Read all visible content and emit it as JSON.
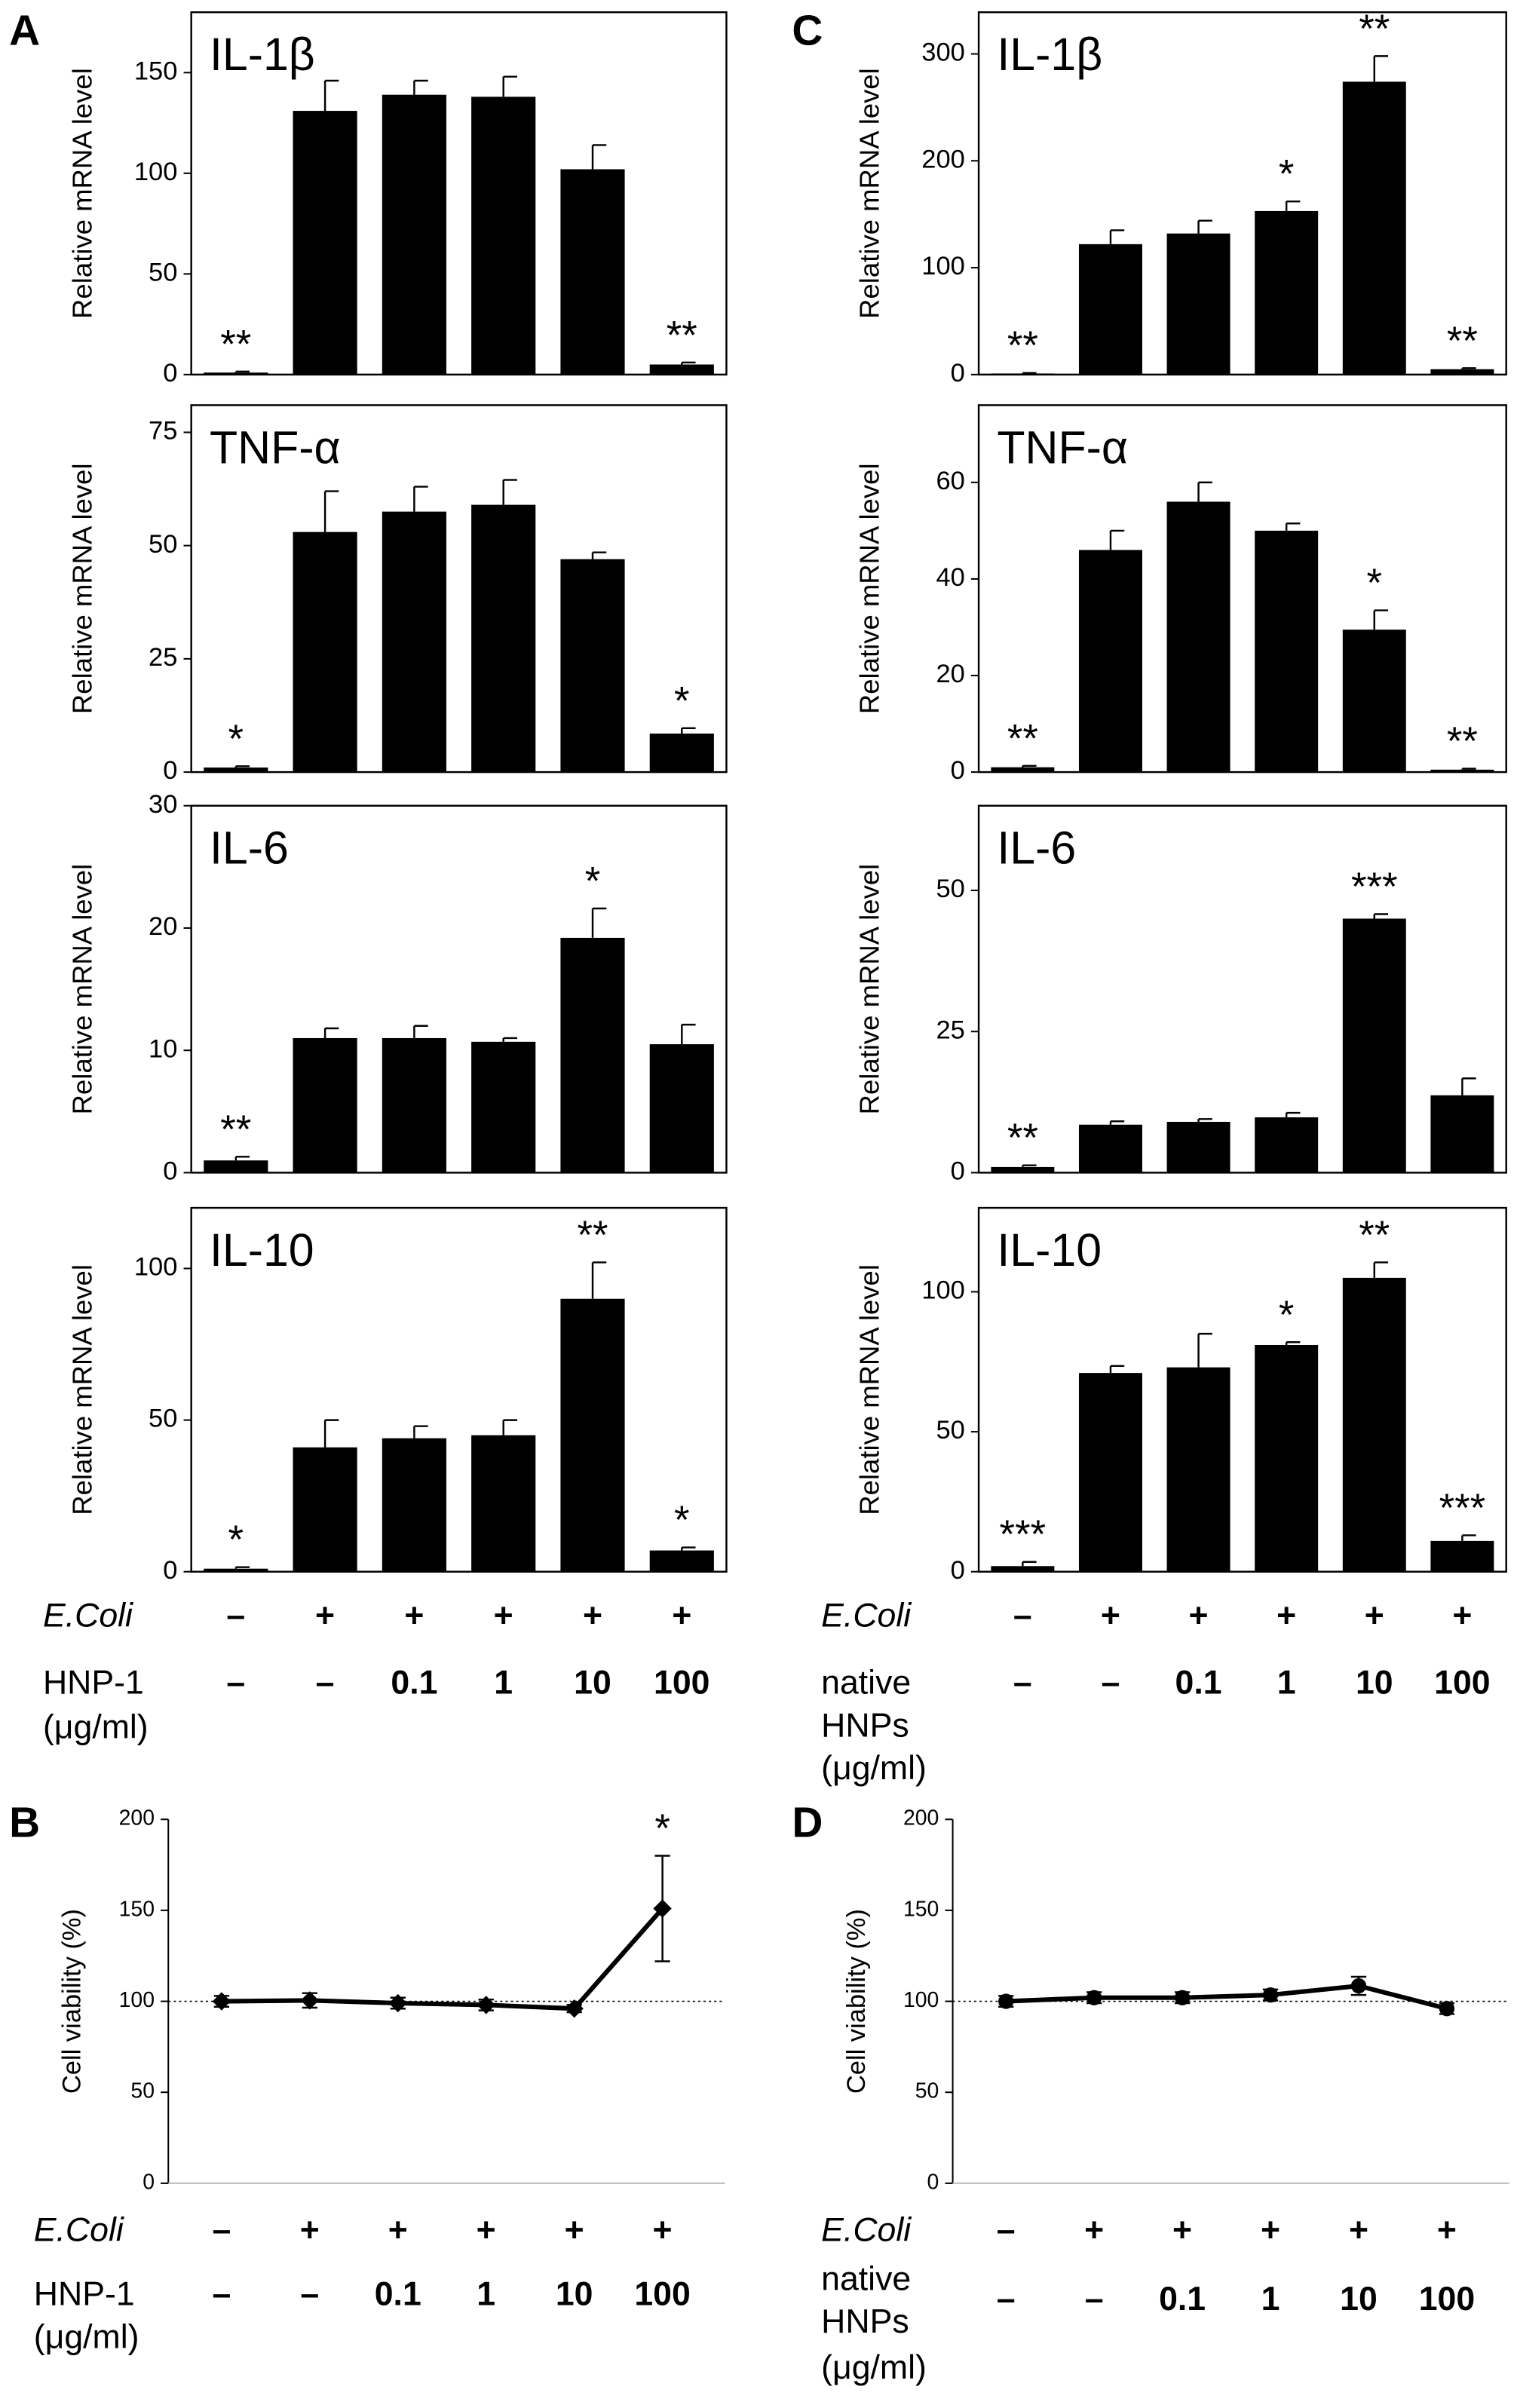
{
  "panels": [
    "A",
    "C",
    "B",
    "D"
  ],
  "chart_data": [
    {
      "type": "bar",
      "title": "IL-1β",
      "y_label": "Relative mRNA level",
      "color": "#000000",
      "ylim": [
        0,
        180
      ],
      "yticks": [
        0,
        50,
        100,
        150
      ],
      "values": [
        1,
        131,
        139,
        138,
        102,
        5
      ],
      "errors": [
        0.5,
        15,
        7,
        10,
        12,
        1
      ],
      "annotations": [
        "**",
        null,
        null,
        null,
        null,
        "**"
      ]
    },
    {
      "type": "bar",
      "title": "TNF-α",
      "y_label": "Relative mRNA level",
      "color": "#000000",
      "ylim": [
        0,
        81
      ],
      "yticks": [
        0,
        25,
        50,
        75
      ],
      "values": [
        1,
        53,
        57.5,
        59,
        47,
        8.5
      ],
      "errors": [
        0.3,
        9,
        5.5,
        5.5,
        1.5,
        1.2
      ],
      "annotations": [
        "*",
        null,
        null,
        null,
        null,
        "*"
      ]
    },
    {
      "type": "bar",
      "title": "IL-6",
      "y_label": "Relative mRNA level",
      "color": "#000000",
      "ylim": [
        0,
        30
      ],
      "yticks": [
        0,
        10,
        20,
        30
      ],
      "values": [
        1,
        11,
        11,
        10.7,
        19.2,
        10.5
      ],
      "errors": [
        0.3,
        0.8,
        1,
        0.3,
        2.4,
        1.6
      ],
      "annotations": [
        "**",
        null,
        null,
        null,
        "*",
        null
      ]
    },
    {
      "type": "bar",
      "title": "IL-10",
      "y_label": "Relative mRNA level",
      "color": "#000000",
      "ylim": [
        0,
        120
      ],
      "yticks": [
        0,
        50,
        100
      ],
      "values": [
        1,
        41,
        44,
        45,
        90,
        7
      ],
      "errors": [
        0.5,
        9,
        4,
        5,
        12,
        1
      ],
      "annotations": [
        "*",
        null,
        null,
        null,
        "**",
        "*"
      ]
    },
    {
      "type": "bar",
      "title": "IL-1β",
      "y_label": "Relative mRNA level",
      "color": "#000000",
      "ylim": [
        0,
        339
      ],
      "yticks": [
        0,
        100,
        200,
        300
      ],
      "values": [
        1,
        122,
        132,
        153,
        274,
        5
      ],
      "errors": [
        0.5,
        13,
        12,
        9,
        24,
        1
      ],
      "annotations": [
        "**",
        null,
        null,
        "*",
        "**",
        "**"
      ]
    },
    {
      "type": "bar",
      "title": "TNF-α",
      "y_label": "Relative mRNA level",
      "color": "#000000",
      "ylim": [
        0,
        76
      ],
      "yticks": [
        0,
        20,
        40,
        60
      ],
      "values": [
        1,
        46,
        56,
        50,
        29.5,
        0.5
      ],
      "errors": [
        0.3,
        4,
        4,
        1.5,
        4,
        0.2
      ],
      "annotations": [
        "**",
        null,
        null,
        null,
        "*",
        "**"
      ]
    },
    {
      "type": "bar",
      "title": "IL-6",
      "y_label": "Relative mRNA level",
      "color": "#000000",
      "ylim": [
        0,
        65
      ],
      "yticks": [
        0,
        25,
        50
      ],
      "values": [
        1,
        8.5,
        9,
        9.8,
        45,
        13.7
      ],
      "errors": [
        0.3,
        0.6,
        0.5,
        0.8,
        0.8,
        3
      ],
      "annotations": [
        "**",
        null,
        null,
        null,
        "***",
        null
      ]
    },
    {
      "type": "bar",
      "title": "IL-10",
      "y_label": "Relative mRNA level",
      "color": "#000000",
      "ylim": [
        0,
        130
      ],
      "yticks": [
        0,
        50,
        100
      ],
      "values": [
        2,
        71,
        73,
        81,
        105,
        11
      ],
      "errors": [
        1.5,
        2.5,
        12,
        1,
        5.5,
        2
      ],
      "annotations": [
        "***",
        null,
        null,
        "*",
        "**",
        "***"
      ]
    },
    {
      "type": "line",
      "marker": "diamond",
      "y_label": "Cell viability (%)",
      "color": "#000000",
      "ylim": [
        0,
        200
      ],
      "yticks": [
        0,
        50,
        100,
        150,
        200
      ],
      "reference_line": 100,
      "values": [
        100,
        100.5,
        99,
        98,
        96,
        151
      ],
      "errors": [
        3,
        4,
        3,
        3,
        2,
        29
      ],
      "annotations": [
        null,
        null,
        null,
        null,
        null,
        "*"
      ]
    },
    {
      "type": "line",
      "marker": "circle",
      "y_label": "Cell viability (%)",
      "color": "#000000",
      "ylim": [
        0,
        200
      ],
      "yticks": [
        0,
        50,
        100,
        150,
        200
      ],
      "reference_line": 100,
      "values": [
        100,
        102,
        102,
        103.5,
        108.5,
        96
      ],
      "errors": [
        3,
        3,
        3,
        3,
        5,
        3
      ],
      "annotations": [
        null,
        null,
        null,
        null,
        null,
        null
      ]
    }
  ],
  "conditions": [
    {
      "rows": [
        {
          "label": [
            "E.Coli"
          ],
          "italic": true,
          "values": [
            "–",
            "+",
            "+",
            "+",
            "+",
            "+"
          ]
        },
        {
          "label": [
            "HNP-1",
            "(μg/ml)"
          ],
          "values": [
            "–",
            "–",
            "0.1",
            "1",
            "10",
            "100"
          ]
        }
      ]
    },
    {
      "rows": [
        {
          "label": [
            "E.Coli"
          ],
          "italic": true,
          "values": [
            "–",
            "+",
            "+",
            "+",
            "+",
            "+"
          ]
        },
        {
          "label": [
            "native",
            "HNPs",
            "(μg/ml)"
          ],
          "values": [
            "–",
            "–",
            "0.1",
            "1",
            "10",
            "100"
          ]
        }
      ]
    },
    {
      "rows": [
        {
          "label": [
            "E.Coli"
          ],
          "italic": true,
          "values": [
            "–",
            "+",
            "+",
            "+",
            "+",
            "+"
          ]
        },
        {
          "label": [
            "HNP-1",
            "(μg/ml)"
          ],
          "values": [
            "–",
            "–",
            "0.1",
            "1",
            "10",
            "100"
          ]
        }
      ]
    },
    {
      "rows": [
        {
          "label": [
            "E.Coli"
          ],
          "italic": true,
          "values": [
            "–",
            "+",
            "+",
            "+",
            "+",
            "+"
          ]
        },
        {
          "label": [
            "native",
            "HNPs",
            "(μg/ml)"
          ],
          "values": [
            "–",
            "–",
            "0.1",
            "1",
            "10",
            "100"
          ]
        }
      ]
    }
  ]
}
